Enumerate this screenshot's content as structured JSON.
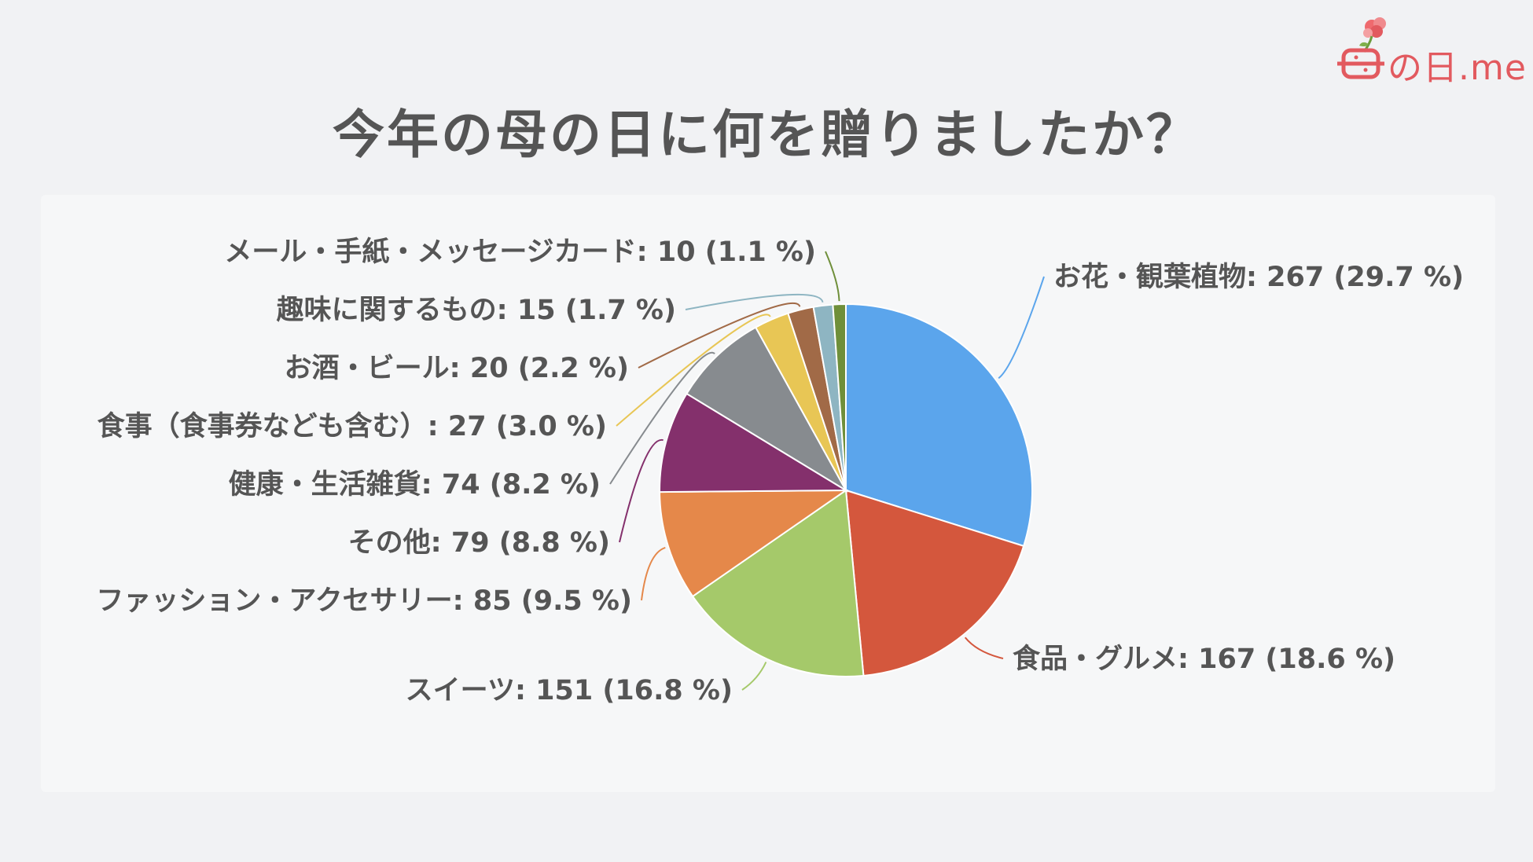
{
  "title": "今年の母の日に何を贈りましたか？",
  "logo": {
    "text": "の日.me",
    "icon": "carnation-flower-icon",
    "color": "#e25a5f"
  },
  "chart_data": {
    "type": "pie",
    "title": "今年の母の日に何を贈りましたか？",
    "slices": [
      {
        "name": "お花・観葉植物",
        "value": 267,
        "percent": 29.7,
        "label": "お花・観葉植物: 267 (29.7 %)",
        "color": "#5ba5ec"
      },
      {
        "name": "食品・グルメ",
        "value": 167,
        "percent": 18.6,
        "label": "食品・グルメ: 167 (18.6 %)",
        "color": "#d4573d"
      },
      {
        "name": "スイーツ",
        "value": 151,
        "percent": 16.8,
        "label": "スイーツ: 151 (16.8 %)",
        "color": "#a5c96a"
      },
      {
        "name": "ファッション・アクセサリー",
        "value": 85,
        "percent": 9.5,
        "label": "ファッション・アクセサリー: 85 (9.5 %)",
        "color": "#e5884a"
      },
      {
        "name": "その他",
        "value": 79,
        "percent": 8.8,
        "label": "その他: 79 (8.8 %)",
        "color": "#84306c"
      },
      {
        "name": "健康・生活雑貨",
        "value": 74,
        "percent": 8.2,
        "label": "健康・生活雑貨: 74 (8.2 %)",
        "color": "#878b8f"
      },
      {
        "name": "食事（食事券なども含む）",
        "value": 27,
        "percent": 3.0,
        "label": "食事（食事券なども含む）: 27 (3.0 %)",
        "color": "#e8c655"
      },
      {
        "name": "お酒・ビール",
        "value": 20,
        "percent": 2.2,
        "label": "お酒・ビール: 20 (2.2 %)",
        "color": "#a16a47"
      },
      {
        "name": "趣味に関するもの",
        "value": 15,
        "percent": 1.7,
        "label": "趣味に関するもの: 15 (1.7 %)",
        "color": "#8eb5c2"
      },
      {
        "name": "メール・手紙・メッセージカード",
        "value": 10,
        "percent": 1.1,
        "label": "メール・手紙・メッセージカード: 10 (1.1 %)",
        "color": "#6f8f3a"
      }
    ],
    "start_angle": "12 o'clock",
    "direction": "clockwise",
    "legend": "none",
    "data_labels": "outside with leader lines"
  }
}
